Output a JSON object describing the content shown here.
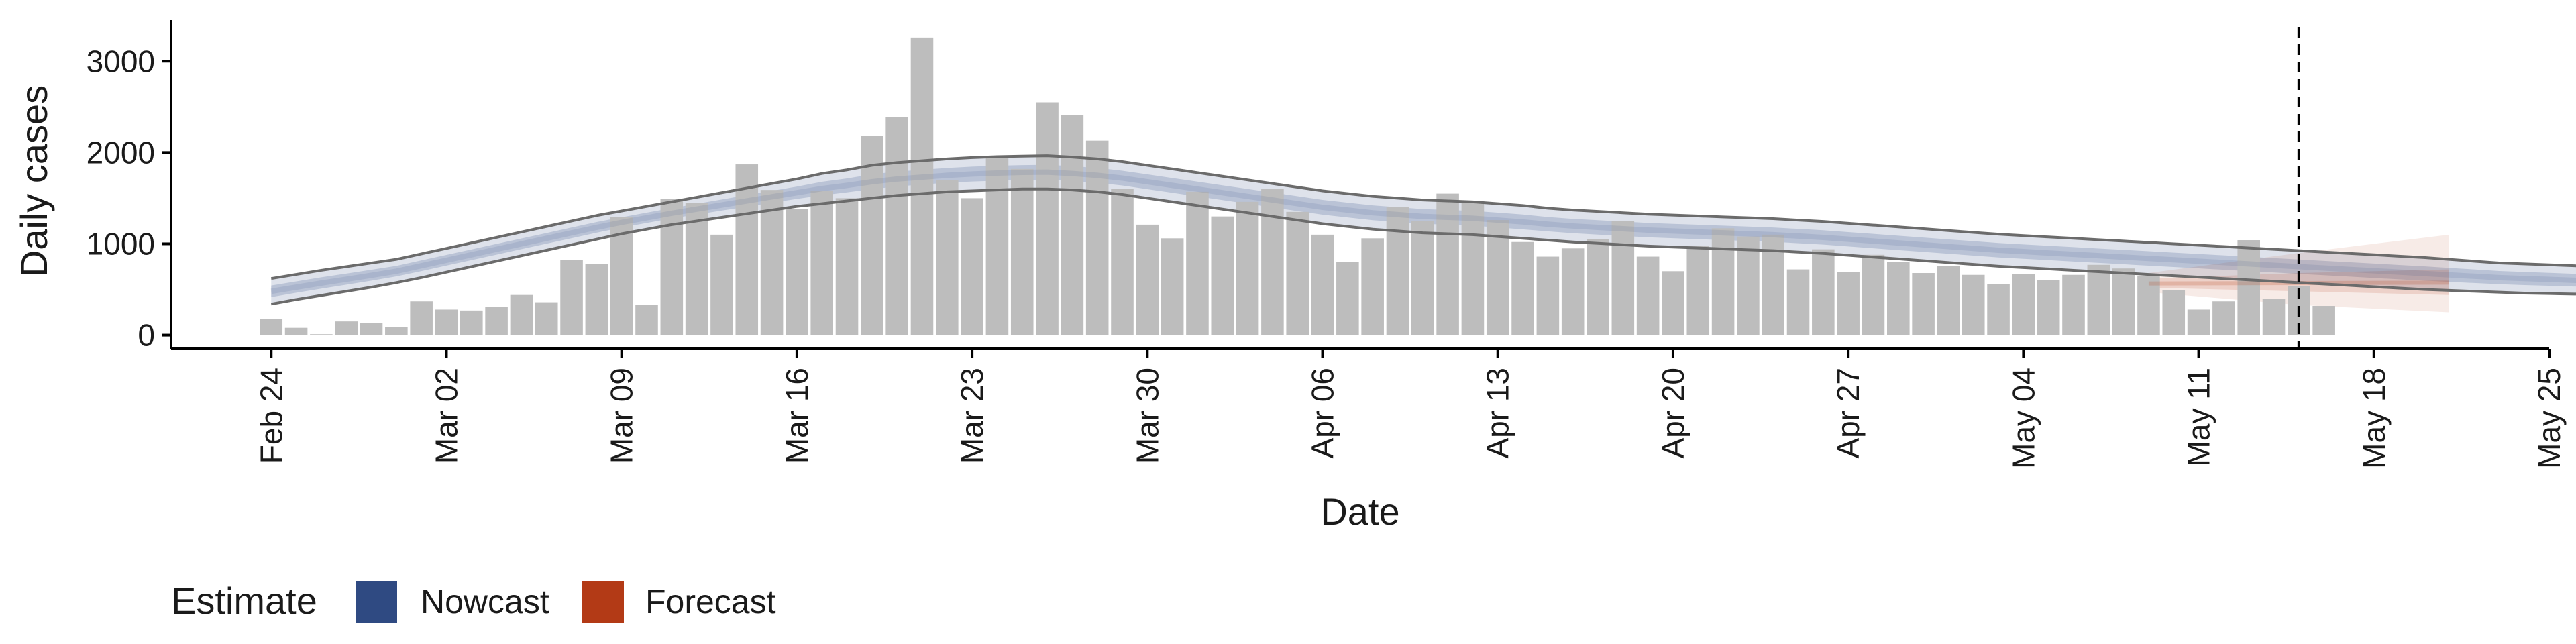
{
  "chart_data": {
    "type": "bar",
    "title": "",
    "xlabel": "Date",
    "ylabel": "Daily cases",
    "x_ticks": [
      "Feb 24",
      "Mar 02",
      "Mar 09",
      "Mar 16",
      "Mar 23",
      "Mar 30",
      "Apr 06",
      "Apr 13",
      "Apr 20",
      "Apr 27",
      "May 04",
      "May 11",
      "May 18",
      "May 25"
    ],
    "x_range": [
      "2020-02-20",
      "2020-05-25"
    ],
    "y_ticks": [
      0,
      1000,
      2000,
      3000
    ],
    "ylim": [
      -150,
      3450
    ],
    "grid": false,
    "bar_color": "#bdbdbd",
    "vline_date": "2020-05-15",
    "bars": {
      "start_date": "2020-02-24",
      "values": [
        180,
        80,
        10,
        150,
        130,
        90,
        370,
        280,
        270,
        310,
        440,
        360,
        820,
        780,
        1290,
        330,
        1490,
        1450,
        1100,
        1870,
        1590,
        1380,
        1580,
        1500,
        2180,
        2390,
        3260,
        1700,
        1500,
        1950,
        1820,
        2550,
        2410,
        2130,
        1600,
        1210,
        1060,
        1570,
        1300,
        1460,
        1600,
        1350,
        1100,
        800,
        1060,
        1400,
        1250,
        1550,
        1470,
        1260,
        1020,
        860,
        950,
        1050,
        1250,
        860,
        700,
        980,
        1170,
        1080,
        1100,
        720,
        940,
        690,
        880,
        800,
        680,
        760,
        660,
        560,
        670,
        600,
        660,
        770,
        730,
        650,
        490,
        280,
        370,
        1040,
        400,
        540,
        320
      ]
    },
    "series": [
      {
        "name": "Nowcast",
        "color": "#2f4a82",
        "start_date": "2020-02-24",
        "median": [
          480,
          525,
          570,
          612,
          655,
          700,
          760,
          820,
          880,
          940,
          1000,
          1060,
          1120,
          1180,
          1235,
          1285,
          1335,
          1380,
          1425,
          1470,
          1515,
          1560,
          1605,
          1640,
          1680,
          1710,
          1730,
          1750,
          1765,
          1775,
          1782,
          1785,
          1770,
          1750,
          1720,
          1680,
          1640,
          1600,
          1560,
          1520,
          1480,
          1440,
          1400,
          1370,
          1340,
          1320,
          1300,
          1290,
          1280,
          1260,
          1240,
          1215,
          1195,
          1180,
          1165,
          1150,
          1140,
          1130,
          1120,
          1110,
          1100,
          1085,
          1070,
          1050,
          1030,
          1010,
          990,
          970,
          950,
          930,
          915,
          900,
          885,
          870,
          855,
          840,
          825,
          810,
          795,
          780,
          765,
          750,
          735,
          720,
          705,
          690,
          675,
          660,
          645,
          630,
          620,
          610,
          600,
          595,
          590,
          585,
          580,
          575,
          570,
          565,
          562,
          560,
          558,
          556,
          555,
          555,
          555,
          560
        ],
        "lower": [
          340,
          390,
          435,
          480,
          525,
          575,
          630,
          690,
          750,
          810,
          870,
          930,
          990,
          1050,
          1110,
          1160,
          1210,
          1250,
          1290,
          1330,
          1370,
          1410,
          1440,
          1470,
          1500,
          1530,
          1550,
          1570,
          1580,
          1590,
          1600,
          1600,
          1590,
          1570,
          1540,
          1500,
          1460,
          1420,
          1380,
          1340,
          1300,
          1260,
          1220,
          1190,
          1160,
          1140,
          1120,
          1110,
          1100,
          1080,
          1060,
          1040,
          1020,
          1005,
          990,
          975,
          965,
          955,
          945,
          935,
          925,
          910,
          895,
          875,
          855,
          835,
          815,
          795,
          775,
          755,
          740,
          725,
          710,
          695,
          680,
          665,
          650,
          635,
          620,
          605,
          590,
          575,
          560,
          545,
          530,
          515,
          500,
          490,
          480,
          470,
          460,
          455,
          450,
          445,
          440,
          435,
          430,
          428,
          426,
          424,
          422,
          420,
          418,
          416,
          414,
          412,
          410,
          410
        ],
        "upper": [
          620,
          665,
          710,
          750,
          790,
          830,
          890,
          950,
          1010,
          1070,
          1130,
          1190,
          1250,
          1310,
          1360,
          1410,
          1460,
          1510,
          1560,
          1610,
          1660,
          1710,
          1770,
          1810,
          1860,
          1890,
          1910,
          1930,
          1945,
          1955,
          1960,
          1965,
          1950,
          1930,
          1900,
          1860,
          1820,
          1780,
          1740,
          1700,
          1660,
          1620,
          1580,
          1550,
          1520,
          1500,
          1480,
          1470,
          1460,
          1440,
          1420,
          1390,
          1370,
          1355,
          1340,
          1325,
          1315,
          1305,
          1295,
          1285,
          1275,
          1260,
          1245,
          1225,
          1205,
          1185,
          1165,
          1145,
          1125,
          1105,
          1090,
          1075,
          1060,
          1045,
          1030,
          1015,
          1000,
          985,
          970,
          955,
          940,
          925,
          910,
          895,
          880,
          865,
          850,
          830,
          810,
          790,
          780,
          770,
          760,
          745,
          740,
          735,
          730,
          722,
          714,
          706,
          702,
          700,
          698,
          696,
          696,
          698,
          700,
          710
        ]
      },
      {
        "name": "Forecast",
        "color": "#b33a16",
        "dates": [
          "2020-05-09",
          "2020-05-15",
          "2020-05-21"
        ],
        "median": [
          565,
          570,
          575
        ],
        "lower90": [
          470,
          330,
          250
        ],
        "upper90": [
          680,
          900,
          1100
        ],
        "lower50": [
          520,
          480,
          440
        ],
        "upper50": [
          620,
          680,
          720
        ]
      }
    ],
    "legend": {
      "title": "Estimate",
      "position": "bottom-left",
      "items": [
        {
          "label": "Nowcast",
          "color": "#2f4a82"
        },
        {
          "label": "Forecast",
          "color": "#b33a16"
        }
      ]
    }
  }
}
